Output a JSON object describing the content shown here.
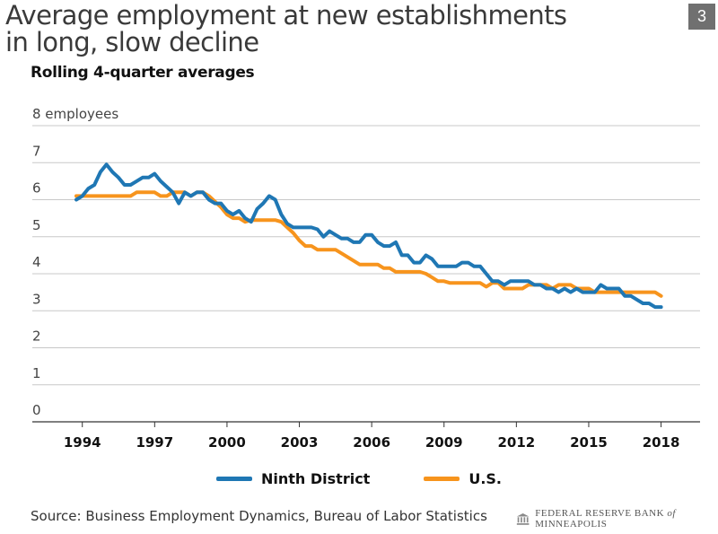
{
  "title_line1": "Average employment at new establishments",
  "title_line2": "in long, slow decline",
  "subtitle": "Rolling 4-quarter averages",
  "page_number": "3",
  "source": "Source: Business Employment Dynamics, Bureau of Labor Statistics",
  "logo_text_prefix": "FEDERAL RESERVE BANK",
  "logo_text_of": "of",
  "logo_text_suffix": "MINNEAPOLIS",
  "colors": {
    "ninth": "#1f77b4",
    "us": "#f7941d",
    "grid": "#c8c8c8"
  },
  "chart_data": {
    "type": "line",
    "ylabel": "8 employees",
    "ylim": [
      0,
      8
    ],
    "yticks": [
      0,
      1,
      2,
      3,
      4,
      5,
      6,
      7
    ],
    "xlim": [
      1993.75,
      2018.5
    ],
    "xticks": [
      1994,
      1997,
      2000,
      2003,
      2006,
      2009,
      2012,
      2015,
      2018
    ],
    "grid": true,
    "legend_position": "bottom",
    "series": [
      {
        "name": "Ninth District",
        "x": [
          1993.75,
          1994.0,
          1994.25,
          1994.5,
          1994.75,
          1995.0,
          1995.25,
          1995.5,
          1995.75,
          1996.0,
          1996.25,
          1996.5,
          1996.75,
          1997.0,
          1997.25,
          1997.5,
          1997.75,
          1998.0,
          1998.25,
          1998.5,
          1998.75,
          1999.0,
          1999.25,
          1999.5,
          1999.75,
          2000.0,
          2000.25,
          2000.5,
          2000.75,
          2001.0,
          2001.25,
          2001.5,
          2001.75,
          2002.0,
          2002.25,
          2002.5,
          2002.75,
          2003.0,
          2003.25,
          2003.5,
          2003.75,
          2004.0,
          2004.25,
          2004.5,
          2004.75,
          2005.0,
          2005.25,
          2005.5,
          2005.75,
          2006.0,
          2006.25,
          2006.5,
          2006.75,
          2007.0,
          2007.25,
          2007.5,
          2007.75,
          2008.0,
          2008.25,
          2008.5,
          2008.75,
          2009.0,
          2009.25,
          2009.5,
          2009.75,
          2010.0,
          2010.25,
          2010.5,
          2010.75,
          2011.0,
          2011.25,
          2011.5,
          2011.75,
          2012.0,
          2012.25,
          2012.5,
          2012.75,
          2013.0,
          2013.25,
          2013.5,
          2013.75,
          2014.0,
          2014.25,
          2014.5,
          2014.75,
          2015.0,
          2015.25,
          2015.5,
          2015.75,
          2016.0,
          2016.25,
          2016.5,
          2016.75,
          2017.0,
          2017.25,
          2017.5,
          2017.75,
          2018.0
        ],
        "values": [
          6.0,
          6.1,
          6.3,
          6.4,
          6.75,
          6.95,
          6.75,
          6.6,
          6.4,
          6.4,
          6.5,
          6.6,
          6.6,
          6.7,
          6.5,
          6.35,
          6.2,
          5.9,
          6.2,
          6.1,
          6.2,
          6.2,
          6.0,
          5.9,
          5.9,
          5.7,
          5.6,
          5.7,
          5.5,
          5.4,
          5.75,
          5.9,
          6.1,
          6.0,
          5.6,
          5.35,
          5.25,
          5.25,
          5.25,
          5.25,
          5.2,
          5.0,
          5.15,
          5.05,
          4.95,
          4.95,
          4.85,
          4.85,
          5.05,
          5.05,
          4.85,
          4.75,
          4.75,
          4.85,
          4.5,
          4.5,
          4.3,
          4.3,
          4.5,
          4.4,
          4.2,
          4.2,
          4.2,
          4.2,
          4.3,
          4.3,
          4.2,
          4.2,
          4.0,
          3.8,
          3.8,
          3.7,
          3.8,
          3.8,
          3.8,
          3.8,
          3.7,
          3.7,
          3.6,
          3.6,
          3.5,
          3.6,
          3.5,
          3.6,
          3.5,
          3.5,
          3.5,
          3.7,
          3.6,
          3.6,
          3.6,
          3.4,
          3.4,
          3.3,
          3.2,
          3.2,
          3.1,
          3.1
        ]
      },
      {
        "name": "U.S.",
        "x": [
          1993.75,
          1994.0,
          1994.25,
          1994.5,
          1994.75,
          1995.0,
          1995.25,
          1995.5,
          1995.75,
          1996.0,
          1996.25,
          1996.5,
          1996.75,
          1997.0,
          1997.25,
          1997.5,
          1997.75,
          1998.0,
          1998.25,
          1998.5,
          1998.75,
          1999.0,
          1999.25,
          1999.5,
          1999.75,
          2000.0,
          2000.25,
          2000.5,
          2000.75,
          2001.0,
          2001.25,
          2001.5,
          2001.75,
          2002.0,
          2002.25,
          2002.5,
          2002.75,
          2003.0,
          2003.25,
          2003.5,
          2003.75,
          2004.0,
          2004.25,
          2004.5,
          2004.75,
          2005.0,
          2005.25,
          2005.5,
          2005.75,
          2006.0,
          2006.25,
          2006.5,
          2006.75,
          2007.0,
          2007.25,
          2007.5,
          2007.75,
          2008.0,
          2008.25,
          2008.5,
          2008.75,
          2009.0,
          2009.25,
          2009.5,
          2009.75,
          2010.0,
          2010.25,
          2010.5,
          2010.75,
          2011.0,
          2011.25,
          2011.5,
          2011.75,
          2012.0,
          2012.25,
          2012.5,
          2012.75,
          2013.0,
          2013.25,
          2013.5,
          2013.75,
          2014.0,
          2014.25,
          2014.5,
          2014.75,
          2015.0,
          2015.25,
          2015.5,
          2015.75,
          2016.0,
          2016.25,
          2016.5,
          2016.75,
          2017.0,
          2017.25,
          2017.5,
          2017.75,
          2018.0
        ],
        "values": [
          6.1,
          6.1,
          6.1,
          6.1,
          6.1,
          6.1,
          6.1,
          6.1,
          6.1,
          6.1,
          6.2,
          6.2,
          6.2,
          6.2,
          6.1,
          6.1,
          6.2,
          6.2,
          6.2,
          6.1,
          6.2,
          6.2,
          6.1,
          5.95,
          5.8,
          5.6,
          5.5,
          5.5,
          5.4,
          5.45,
          5.45,
          5.45,
          5.45,
          5.45,
          5.4,
          5.25,
          5.1,
          4.9,
          4.75,
          4.75,
          4.65,
          4.65,
          4.65,
          4.65,
          4.55,
          4.45,
          4.35,
          4.25,
          4.25,
          4.25,
          4.25,
          4.15,
          4.15,
          4.05,
          4.05,
          4.05,
          4.05,
          4.05,
          4.0,
          3.9,
          3.8,
          3.8,
          3.75,
          3.75,
          3.75,
          3.75,
          3.75,
          3.75,
          3.65,
          3.75,
          3.75,
          3.6,
          3.6,
          3.6,
          3.6,
          3.7,
          3.7,
          3.7,
          3.7,
          3.6,
          3.7,
          3.7,
          3.7,
          3.6,
          3.6,
          3.6,
          3.5,
          3.5,
          3.5,
          3.5,
          3.5,
          3.5,
          3.5,
          3.5,
          3.5,
          3.5,
          3.5,
          3.4
        ]
      }
    ]
  }
}
